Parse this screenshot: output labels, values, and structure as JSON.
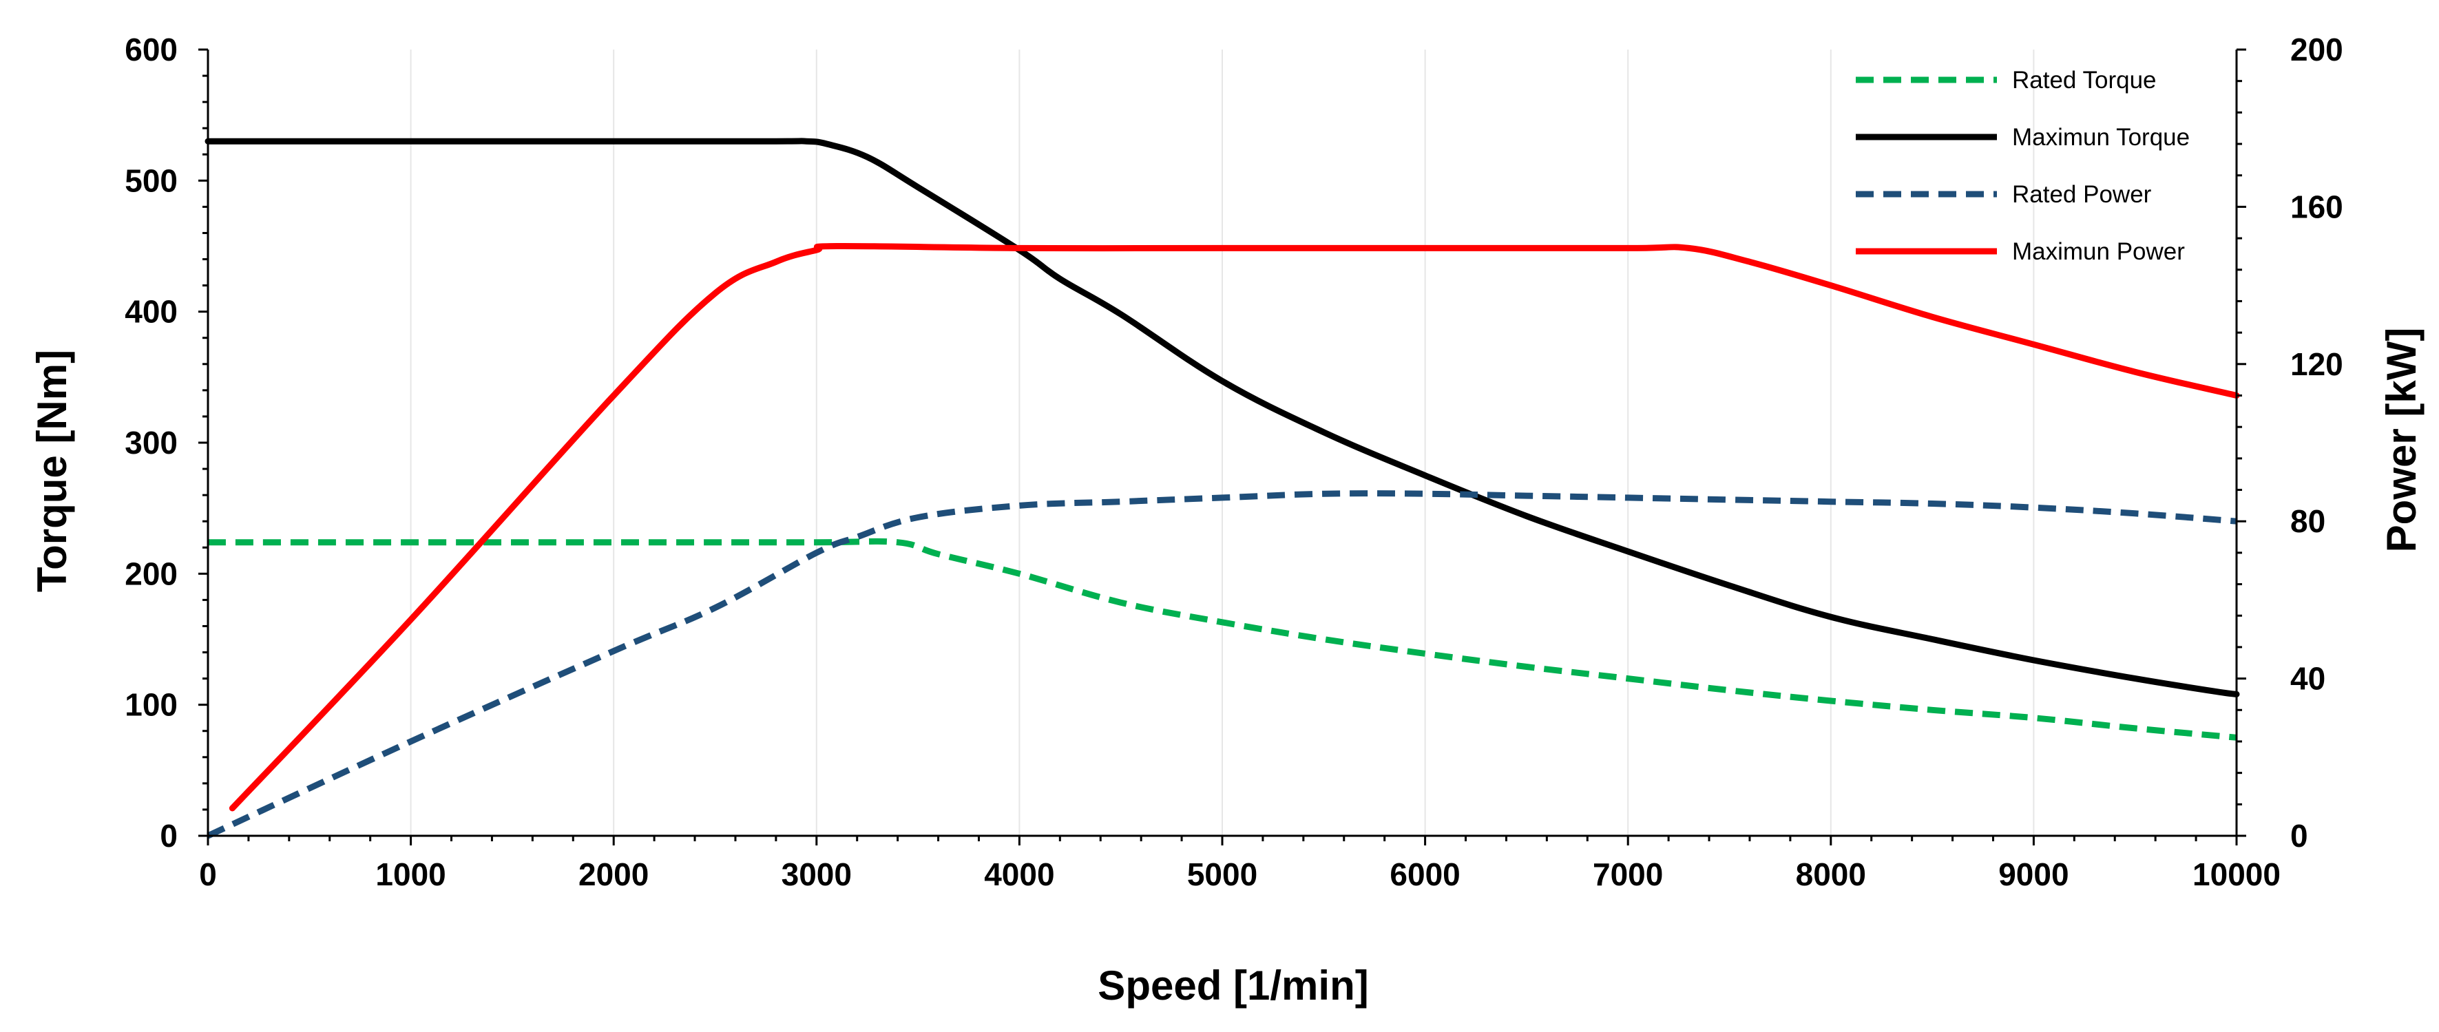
{
  "chart_data": {
    "type": "line",
    "title": "",
    "xlabel": "Speed [1/min]",
    "ylabel": "Torque [Nm]",
    "y2label": "Power [kW]",
    "xlim": [
      0,
      10000
    ],
    "ylim": [
      0,
      600
    ],
    "y2lim": [
      0,
      200
    ],
    "xticks": [
      0,
      1000,
      2000,
      3000,
      4000,
      5000,
      6000,
      7000,
      8000,
      9000,
      10000
    ],
    "yticks": [
      0,
      100,
      200,
      300,
      400,
      500,
      600
    ],
    "y2ticks": [
      0,
      40,
      80,
      120,
      160,
      200
    ],
    "grid": "vertical",
    "legend_position": "top-right",
    "series": [
      {
        "name": "Rated Torque",
        "axis": "left",
        "color": "#00b050",
        "style": "dashed",
        "x": [
          0,
          1000,
          2000,
          3000,
          3400,
          3600,
          4000,
          4500,
          5000,
          5500,
          6000,
          6500,
          7000,
          7500,
          8000,
          8500,
          9000,
          9500,
          10000
        ],
        "y": [
          224,
          224,
          224,
          224,
          224,
          215,
          200,
          178,
          163,
          150,
          139,
          129,
          120,
          111,
          103,
          96,
          90,
          82,
          75
        ]
      },
      {
        "name": "Maximun Torque",
        "axis": "left",
        "color": "#000000",
        "style": "solid",
        "x": [
          0,
          1000,
          2000,
          2800,
          2950,
          3050,
          3250,
          3500,
          4000,
          4200,
          4500,
          5000,
          5500,
          6000,
          6500,
          7000,
          7500,
          8000,
          8500,
          9000,
          9500,
          9900,
          10000
        ],
        "y": [
          530,
          530,
          530,
          530,
          530,
          528,
          518,
          495,
          447,
          425,
          398,
          347,
          308,
          275,
          244,
          217,
          191,
          167,
          150,
          134,
          120,
          110,
          108
        ]
      },
      {
        "name": "Rated Power",
        "axis": "right",
        "color": "#1f4e79",
        "style": "dashed",
        "x": [
          0,
          1000,
          2000,
          2500,
          3000,
          3200,
          3500,
          4000,
          4500,
          5000,
          5500,
          6000,
          6500,
          7000,
          7500,
          8000,
          8500,
          9000,
          9500,
          10000
        ],
        "y": [
          0,
          24,
          47,
          58,
          72,
          76,
          81,
          84,
          85,
          86,
          87,
          87,
          86.5,
          86,
          85.5,
          85,
          84.5,
          83.5,
          82,
          80
        ]
      },
      {
        "name": "Maximun Power",
        "axis": "right",
        "color": "#ff0000",
        "style": "solid",
        "x": [
          120,
          1000,
          2000,
          2500,
          2800,
          3000,
          3100,
          4000,
          5000,
          6000,
          7000,
          7300,
          7600,
          8000,
          8500,
          9000,
          9500,
          10000
        ],
        "y": [
          7,
          55,
          112,
          138,
          146,
          149,
          150,
          149.5,
          149.5,
          149.5,
          149.5,
          149.5,
          146,
          140,
          132,
          125,
          118,
          112
        ]
      }
    ]
  }
}
